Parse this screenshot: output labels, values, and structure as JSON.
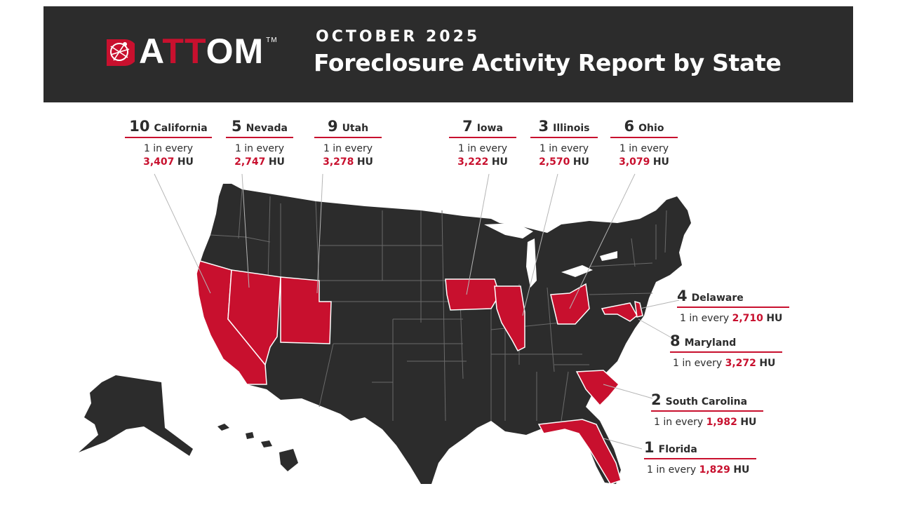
{
  "header": {
    "logo_text_a": "A",
    "logo_text_tt": "TT",
    "logo_text_om": "OM",
    "logo_tm": "TM",
    "kicker": "OCTOBER 2025",
    "title": "Foreclosure Activity Report by State"
  },
  "colors": {
    "header_bg": "#2c2c2c",
    "land": "#2c2c2c",
    "highlight": "#c8102e",
    "text": "#2c2c2c"
  },
  "callouts": {
    "california": {
      "rank": "10",
      "state": "California",
      "prefix": "1 in every",
      "value": "3,407",
      "unit": "HU"
    },
    "nevada": {
      "rank": "5",
      "state": "Nevada",
      "prefix": "1 in every",
      "value": "2,747",
      "unit": "HU"
    },
    "utah": {
      "rank": "9",
      "state": "Utah",
      "prefix": "1 in every",
      "value": "3,278",
      "unit": "HU"
    },
    "iowa": {
      "rank": "7",
      "state": "Iowa",
      "prefix": "1 in every",
      "value": "3,222",
      "unit": "HU"
    },
    "illinois": {
      "rank": "3",
      "state": "Illinois",
      "prefix": "1 in every",
      "value": "2,570",
      "unit": "HU"
    },
    "ohio": {
      "rank": "6",
      "state": "Ohio",
      "prefix": "1 in every",
      "value": "3,079",
      "unit": "HU"
    },
    "delaware": {
      "rank": "4",
      "state": "Delaware",
      "prefix": "1 in every",
      "value": "2,710",
      "unit": "HU"
    },
    "maryland": {
      "rank": "8",
      "state": "Maryland",
      "prefix": "1 in every",
      "value": "3,272",
      "unit": "HU"
    },
    "south_carolina": {
      "rank": "2",
      "state": "South Carolina",
      "prefix": "1 in every",
      "value": "1,982",
      "unit": "HU"
    },
    "florida": {
      "rank": "1",
      "state": "Florida",
      "prefix": "1 in every",
      "value": "1,829",
      "unit": "HU"
    }
  }
}
